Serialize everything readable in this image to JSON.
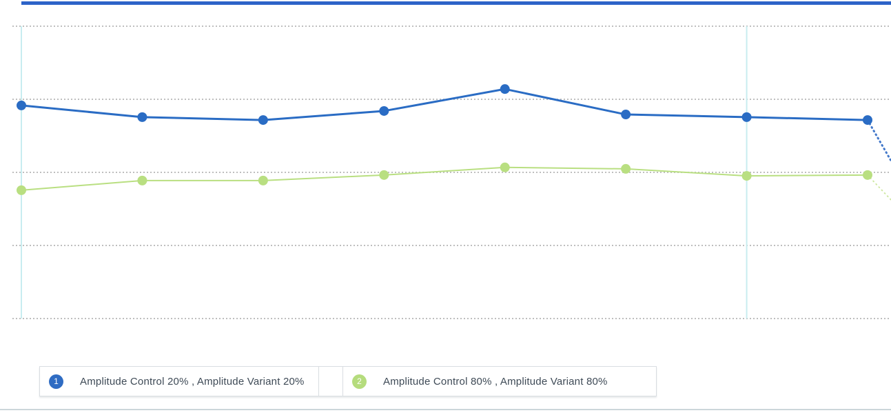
{
  "page": {
    "background": "#ffffff",
    "top_accent_color": "#2d63c8",
    "bottom_divider_color": "#ccd6da"
  },
  "chart_data": {
    "type": "line",
    "title": "",
    "xlabel": "",
    "ylabel": "",
    "x": [
      1,
      2,
      3,
      4,
      5,
      6,
      7,
      8
    ],
    "ylim": [
      0,
      1
    ],
    "grid": "horizontal-dotted",
    "gridline_count": 5,
    "gridline_color": "#b3b3b3",
    "vertical_marker_indices": [
      0,
      6
    ],
    "vertical_marker_color": "#c8edf0",
    "legend_position": "bottom",
    "series": [
      {
        "name": "Amplitude Control 20% , Amplitude Variant 20%",
        "color": "#2a6cc4",
        "projection_color": "#3a72c8",
        "line_width": 3,
        "point_radius": 7,
        "values": [
          0.729,
          0.689,
          0.679,
          0.71,
          0.785,
          0.698,
          0.689,
          0.679
        ],
        "projection_value": 0.54
      },
      {
        "name": "Amplitude Control 80% , Amplitude Variant 80%",
        "color": "#b9df81",
        "projection_color": "#cde79f",
        "line_width": 2,
        "point_radius": 7,
        "values": [
          0.439,
          0.472,
          0.472,
          0.491,
          0.517,
          0.512,
          0.488,
          0.491
        ],
        "projection_value": 0.406
      }
    ]
  },
  "legend": {
    "items": [
      {
        "number": "1",
        "marker_color": "#2f6cc3",
        "label": "Amplitude Control 20% , Amplitude Variant 20%"
      },
      {
        "number": "2",
        "marker_color": "#b5dc7d",
        "label": "Amplitude Control 80% , Amplitude Variant 80%"
      }
    ]
  }
}
